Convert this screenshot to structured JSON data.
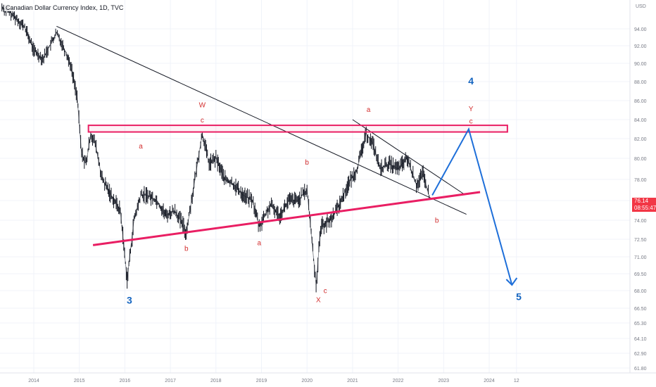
{
  "header": {
    "symbol_title": "Canadian Dollar Currency Index, 1D, TVC"
  },
  "price_axis": {
    "currency": "USD",
    "ticks": [
      "94.00",
      "92.00",
      "90.00",
      "88.00",
      "86.00",
      "84.00",
      "82.00",
      "80.00",
      "78.00",
      "76.00",
      "74.00",
      "72.50",
      "71.00",
      "69.50",
      "68.00",
      "66.50",
      "65.30",
      "64.10",
      "62.90",
      "61.80"
    ],
    "last_price": "76.14",
    "countdown": "08:55:47"
  },
  "time_axis": {
    "ticks": [
      "2014",
      "2015",
      "2016",
      "2017",
      "2018",
      "2019",
      "2020",
      "2021",
      "2022",
      "2023",
      "2024",
      "12"
    ]
  },
  "wave_labels": {
    "w": "W",
    "c_top1": "c",
    "a_left": "a",
    "b_left": "b",
    "b_mid": "b",
    "a_mid": "a",
    "x_label": "X",
    "c_x": "c",
    "a_top": "a",
    "b_right": "b",
    "four": "4",
    "y_label": "Y",
    "c_right": "c",
    "three": "3",
    "five": "5"
  },
  "colors": {
    "candles": "#131722",
    "trendline": "#131722",
    "support": "#e91e63",
    "resistance_box": "#e91e63",
    "projection": "#1e6fd9",
    "wave_red": "#d32f2f",
    "wave_blue": "#1565c0",
    "price_tag": "#f23645"
  },
  "chart_data": {
    "type": "line",
    "title": "Canadian Dollar Currency Index, 1D, TVC",
    "xlabel": "",
    "ylabel": "USD",
    "ylim": [
      60.6,
      97.5
    ],
    "grid": true,
    "series": [
      {
        "values": [
          [
            2013.3,
            96.5
          ],
          [
            2013.5,
            95.8
          ],
          [
            2013.8,
            94.2
          ],
          [
            2014.0,
            91.5
          ],
          [
            2014.2,
            90.5
          ],
          [
            2014.35,
            92.0
          ],
          [
            2014.5,
            93.5
          ],
          [
            2014.6,
            92.5
          ],
          [
            2014.8,
            90.0
          ],
          [
            2014.95,
            86.5
          ],
          [
            2015.05,
            80.5
          ],
          [
            2015.15,
            79.5
          ],
          [
            2015.25,
            82.5
          ],
          [
            2015.35,
            81.5
          ],
          [
            2015.5,
            78.0
          ],
          [
            2015.7,
            76.5
          ],
          [
            2015.9,
            75.0
          ],
          [
            2016.05,
            69.0
          ],
          [
            2016.2,
            74.0
          ],
          [
            2016.35,
            76.5
          ],
          [
            2016.5,
            76.5
          ],
          [
            2016.7,
            76.0
          ],
          [
            2016.9,
            74.5
          ],
          [
            2017.1,
            75.0
          ],
          [
            2017.35,
            73.0
          ],
          [
            2017.5,
            77.0
          ],
          [
            2017.7,
            82.5
          ],
          [
            2017.85,
            79.5
          ],
          [
            2018.0,
            80.0
          ],
          [
            2018.2,
            78.0
          ],
          [
            2018.4,
            77.5
          ],
          [
            2018.6,
            76.5
          ],
          [
            2018.8,
            76.0
          ],
          [
            2018.95,
            73.5
          ],
          [
            2019.2,
            75.5
          ],
          [
            2019.4,
            74.5
          ],
          [
            2019.6,
            76.0
          ],
          [
            2019.8,
            76.0
          ],
          [
            2020.0,
            77.0
          ],
          [
            2020.2,
            68.5
          ],
          [
            2020.3,
            73.5
          ],
          [
            2020.5,
            74.0
          ],
          [
            2020.7,
            75.5
          ],
          [
            2020.9,
            77.5
          ],
          [
            2021.1,
            79.0
          ],
          [
            2021.3,
            82.5
          ],
          [
            2021.45,
            81.5
          ],
          [
            2021.6,
            79.0
          ],
          [
            2021.8,
            79.5
          ],
          [
            2022.0,
            79.0
          ],
          [
            2022.2,
            80.0
          ],
          [
            2022.4,
            77.5
          ],
          [
            2022.55,
            78.5
          ],
          [
            2022.7,
            76.1
          ]
        ]
      }
    ],
    "lines": [
      {
        "name": "long-descending-trendline",
        "from": [
          2014.5,
          94.3
        ],
        "to": [
          2023.5,
          74.6
        ]
      },
      {
        "name": "short-descending-trendline",
        "from": [
          2021.0,
          84.0
        ],
        "to": [
          2023.45,
          76.6
        ]
      },
      {
        "name": "support-line",
        "from": [
          2015.3,
          72.0
        ],
        "to": [
          2023.8,
          76.8
        ]
      }
    ],
    "zones": [
      {
        "name": "resistance-box",
        "x": [
          2015.2,
          2024.4
        ],
        "y": [
          82.7,
          83.4
        ]
      }
    ],
    "projection": [
      [
        2022.75,
        76.5
      ],
      [
        2023.55,
        83.0
      ],
      [
        2024.5,
        68.5
      ]
    ],
    "annotations": [
      {
        "text": "W",
        "x": 2017.7,
        "y": 85.3
      },
      {
        "text": "c",
        "x": 2017.7,
        "y": 83.7
      },
      {
        "text": "a",
        "x": 2016.35,
        "y": 81.0
      },
      {
        "text": "b",
        "x": 2017.35,
        "y": 71.5
      },
      {
        "text": "a",
        "x": 2018.95,
        "y": 72.0
      },
      {
        "text": "b",
        "x": 2020.0,
        "y": 79.4
      },
      {
        "text": "X",
        "x": 2020.25,
        "y": 67.0
      },
      {
        "text": "c",
        "x": 2020.4,
        "y": 67.8
      },
      {
        "text": "a",
        "x": 2021.35,
        "y": 84.8
      },
      {
        "text": "b",
        "x": 2022.85,
        "y": 73.8
      },
      {
        "text": "4",
        "x": 2023.6,
        "y": 87.7
      },
      {
        "text": "Y",
        "x": 2023.6,
        "y": 84.9
      },
      {
        "text": "c",
        "x": 2023.6,
        "y": 83.6
      },
      {
        "text": "3",
        "x": 2016.1,
        "y": 66.9
      },
      {
        "text": "5",
        "x": 2024.65,
        "y": 67.2
      }
    ]
  }
}
